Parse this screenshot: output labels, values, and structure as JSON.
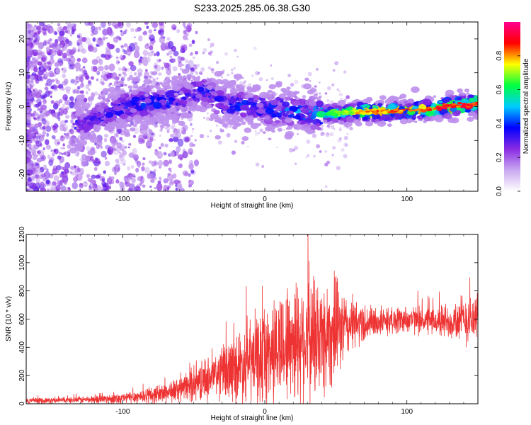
{
  "chart_data": [
    {
      "type": "heatmap",
      "title": "S233.2025.285.06.38.G30",
      "xlabel": "Height of straight line (km)",
      "ylabel": "Frequency (Hz)",
      "xlim": [
        -168,
        150
      ],
      "ylim": [
        -25,
        25
      ],
      "xticks": [
        -100,
        0,
        100
      ],
      "yticks": [
        -20,
        -10,
        0,
        10,
        20
      ],
      "colorbar": {
        "label": "Normalized spectral amplitude",
        "range": [
          0,
          1
        ],
        "ticks": [
          0.0,
          0.2,
          0.4,
          0.6,
          0.8
        ],
        "colormap": [
          "#ffffff",
          "#c9a8f0",
          "#8a2be2",
          "#0000ff",
          "#00ccff",
          "#00ff40",
          "#ffff00",
          "#ff0000",
          "#ff0090"
        ]
      },
      "ridge": [
        {
          "x": -130,
          "f": -5,
          "amp": 0.35
        },
        {
          "x": -115,
          "f": -3,
          "amp": 0.35
        },
        {
          "x": -100,
          "f": 0,
          "amp": 0.4
        },
        {
          "x": -80,
          "f": 1,
          "amp": 0.4
        },
        {
          "x": -60,
          "f": 2,
          "amp": 0.4
        },
        {
          "x": -45,
          "f": 5,
          "amp": 0.4
        },
        {
          "x": -30,
          "f": 1,
          "amp": 0.4
        },
        {
          "x": -10,
          "f": 0,
          "amp": 0.4
        },
        {
          "x": 10,
          "f": -1,
          "amp": 0.45
        },
        {
          "x": 30,
          "f": -2,
          "amp": 0.5
        },
        {
          "x": 50,
          "f": -2,
          "amp": 0.7
        },
        {
          "x": 70,
          "f": -1.5,
          "amp": 0.85
        },
        {
          "x": 90,
          "f": -1.5,
          "amp": 0.9
        },
        {
          "x": 110,
          "f": -1,
          "amp": 0.9
        },
        {
          "x": 130,
          "f": 0,
          "amp": 0.95
        },
        {
          "x": 150,
          "f": 1,
          "amp": 0.95
        }
      ]
    },
    {
      "type": "line",
      "xlabel": "Height of straight line (km)",
      "ylabel": "SNR (10 * v/v)",
      "xlim": [
        -168,
        150
      ],
      "ylim": [
        0,
        1200
      ],
      "xticks": [
        -100,
        0,
        100
      ],
      "yticks": [
        0,
        200,
        400,
        600,
        800,
        1000,
        1200
      ],
      "series": [
        {
          "color": "#ee3333",
          "envelope_x": [
            -168,
            -140,
            -120,
            -100,
            -80,
            -60,
            -40,
            -20,
            0,
            10,
            20,
            30,
            40,
            50,
            60,
            80,
            100,
            120,
            140,
            150
          ],
          "envelope_y": [
            20,
            25,
            30,
            40,
            60,
            100,
            180,
            260,
            340,
            400,
            460,
            470,
            470,
            520,
            560,
            580,
            600,
            580,
            600,
            600
          ],
          "variation_y": [
            20,
            20,
            30,
            40,
            60,
            90,
            150,
            250,
            350,
            400,
            450,
            480,
            450,
            350,
            200,
            100,
            100,
            100,
            180,
            200
          ]
        }
      ]
    }
  ]
}
